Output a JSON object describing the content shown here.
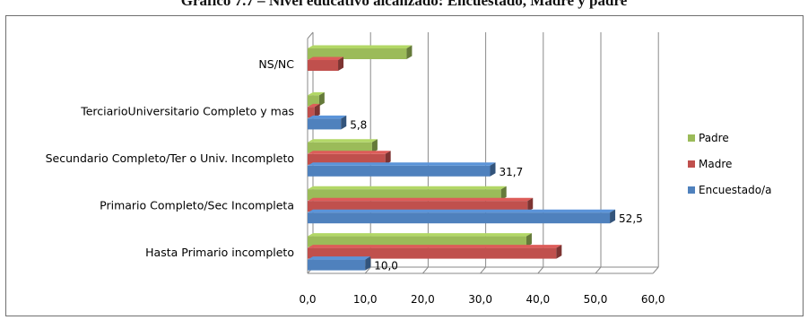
{
  "page": {
    "title": "Gráfico 7.7 – Nivel educativo alcanzado: Encuestado, Madre y padre"
  },
  "chart_data": {
    "type": "bar",
    "orientation": "horizontal",
    "title": "Gráfico 7.7 – Nivel educativo alcanzado: Encuestado, Madre y padre",
    "categories": [
      "NS/NC",
      "TerciarioUniversitario Completo y mas",
      "Secundario Completo/Ter o Univ. Incompleto",
      "Primario Completo/Sec Incompleta",
      "Hasta Primario incompleto"
    ],
    "series": [
      {
        "name": "Padre",
        "color": "#9bbb59",
        "values": [
          17.2,
          2.0,
          11.2,
          33.6,
          38.0
        ]
      },
      {
        "name": "Madre",
        "color": "#c0504d",
        "values": [
          5.3,
          1.2,
          13.5,
          38.2,
          43.2
        ]
      },
      {
        "name": "Encuestado/a",
        "color": "#4f81bd",
        "values": [
          0.0,
          5.8,
          31.7,
          52.5,
          10.0
        ]
      }
    ],
    "data_labels": {
      "series": "Encuestado/a",
      "values": [
        "",
        "5,8",
        "31,7",
        "52,5",
        "10,0"
      ]
    },
    "xlim": [
      0,
      60
    ],
    "xticks": [
      "0,0",
      "10,0",
      "20,0",
      "30,0",
      "40,0",
      "50,0",
      "60,0"
    ],
    "grid": true,
    "legend_position": "right",
    "legend": [
      "Padre",
      "Madre",
      "Encuestado/a"
    ],
    "style": "3d"
  }
}
